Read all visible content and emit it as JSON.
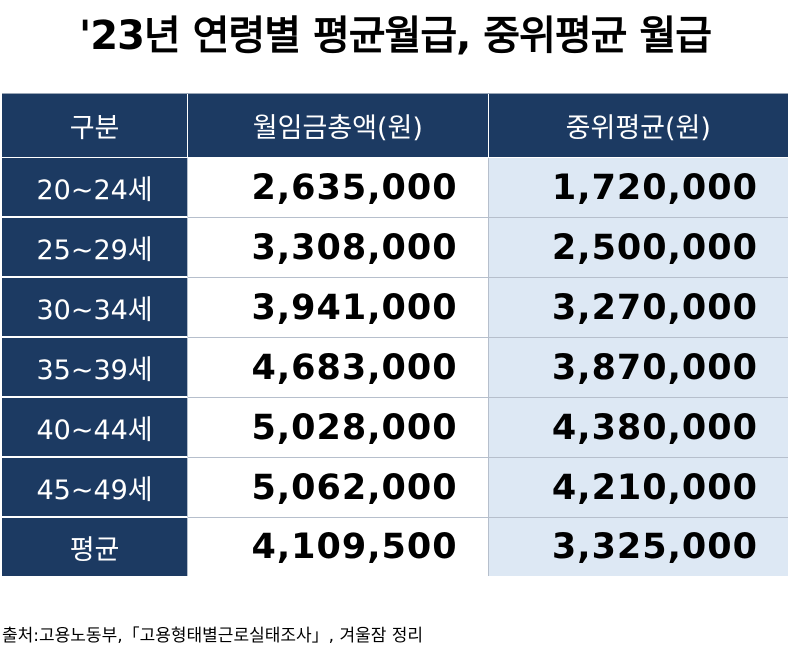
{
  "chart_data": {
    "type": "table",
    "title": "'23년 연령별 평균월급, 중위평균 월급",
    "columns": [
      "구분",
      "월임금총액(원)",
      "중위평균(원)"
    ],
    "rows": [
      [
        "20~24세",
        "2,635,000",
        "1,720,000"
      ],
      [
        "25~29세",
        "3,308,000",
        "2,500,000"
      ],
      [
        "30~34세",
        "3,941,000",
        "3,270,000"
      ],
      [
        "35~39세",
        "4,683,000",
        "3,870,000"
      ],
      [
        "40~44세",
        "5,028,000",
        "4,380,000"
      ],
      [
        "45~49세",
        "5,062,000",
        "4,210,000"
      ],
      [
        "평균",
        "4,109,500",
        "3,325,000"
      ]
    ],
    "source": "출처:고용노동부,「고용형태별근로실태조사」, 겨울잠 정리"
  },
  "colors": {
    "header_bg": "#1c3a62",
    "header_text": "#ffffff",
    "median_col_bg": "#dde8f4"
  }
}
